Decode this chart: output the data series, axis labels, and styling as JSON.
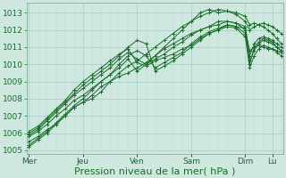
{
  "bg_color": "#cee8e0",
  "plot_bg_color": "#cee8e0",
  "grid_major_color": "#a8ccc5",
  "grid_minor_color": "#b8d8d0",
  "line_color": "#1a6b2a",
  "xlabel": "Pression niveau de la mer( hPa )",
  "xlabel_fontsize": 8,
  "tick_fontsize": 6.5,
  "ylim": [
    1004.8,
    1013.6
  ],
  "yticks": [
    1005,
    1006,
    1007,
    1008,
    1009,
    1010,
    1011,
    1012,
    1013
  ],
  "xtick_labels": [
    "Mer",
    "Jeu",
    "Ven",
    "Sam",
    "Dim",
    "Lu"
  ],
  "xtick_positions": [
    0,
    24,
    48,
    72,
    96,
    108
  ],
  "xlim": [
    -1,
    113
  ],
  "series": [
    [
      0,
      1005.5,
      4,
      1005.8,
      8,
      1006.2,
      12,
      1006.5,
      16,
      1007.0,
      20,
      1007.5,
      24,
      1007.8,
      28,
      1008.0,
      32,
      1008.4,
      36,
      1009.0,
      40,
      1009.3,
      44,
      1009.5,
      48,
      1009.8,
      52,
      1010.1,
      56,
      1010.5,
      60,
      1010.9,
      64,
      1011.2,
      68,
      1011.5,
      72,
      1011.8,
      76,
      1012.0,
      80,
      1012.2,
      84,
      1012.3,
      88,
      1012.5,
      92,
      1012.4,
      96,
      1012.0,
      98,
      1010.8,
      100,
      1011.0,
      102,
      1011.1,
      104,
      1011.0,
      106,
      1010.9,
      108,
      1010.9,
      110,
      1010.8,
      112,
      1010.7
    ],
    [
      0,
      1005.8,
      4,
      1006.1,
      8,
      1006.5,
      12,
      1007.0,
      16,
      1007.4,
      20,
      1007.9,
      24,
      1008.2,
      28,
      1008.6,
      32,
      1009.0,
      36,
      1009.4,
      40,
      1010.0,
      44,
      1010.5,
      48,
      1010.8,
      52,
      1010.5,
      56,
      1009.8,
      60,
      1010.1,
      64,
      1010.4,
      68,
      1010.7,
      72,
      1011.2,
      76,
      1011.6,
      80,
      1011.9,
      84,
      1012.1,
      88,
      1012.3,
      92,
      1012.2,
      96,
      1011.8,
      98,
      1010.2,
      100,
      1010.8,
      102,
      1011.2,
      104,
      1011.4,
      106,
      1011.3,
      108,
      1011.2,
      110,
      1011.0,
      112,
      1010.8
    ],
    [
      0,
      1006.0,
      4,
      1006.3,
      8,
      1006.8,
      12,
      1007.3,
      16,
      1007.8,
      20,
      1008.3,
      24,
      1008.8,
      28,
      1009.2,
      32,
      1009.6,
      36,
      1010.0,
      40,
      1010.5,
      44,
      1011.0,
      48,
      1011.4,
      52,
      1011.2,
      56,
      1009.6,
      60,
      1009.9,
      64,
      1010.2,
      68,
      1010.6,
      72,
      1011.0,
      76,
      1011.4,
      80,
      1011.8,
      84,
      1012.0,
      88,
      1012.2,
      92,
      1012.1,
      96,
      1011.6,
      98,
      1009.8,
      100,
      1010.5,
      102,
      1010.9,
      104,
      1011.1,
      106,
      1011.0,
      108,
      1010.9,
      110,
      1010.7,
      112,
      1010.5
    ],
    [
      0,
      1005.3,
      4,
      1005.7,
      8,
      1006.1,
      12,
      1006.6,
      16,
      1007.1,
      20,
      1007.6,
      24,
      1008.0,
      28,
      1008.5,
      32,
      1009.0,
      36,
      1009.4,
      40,
      1009.8,
      44,
      1010.3,
      48,
      1009.6,
      52,
      1010.0,
      56,
      1010.5,
      60,
      1011.0,
      64,
      1011.5,
      68,
      1012.0,
      72,
      1012.5,
      76,
      1013.0,
      80,
      1013.2,
      84,
      1013.0,
      88,
      1013.1,
      92,
      1012.9,
      96,
      1012.5,
      98,
      1012.0,
      100,
      1012.2,
      102,
      1012.3,
      104,
      1012.4,
      106,
      1012.3,
      108,
      1012.2,
      110,
      1012.0,
      112,
      1011.8
    ],
    [
      0,
      1005.2,
      4,
      1005.6,
      8,
      1006.0,
      12,
      1006.5,
      16,
      1007.0,
      20,
      1007.5,
      24,
      1007.8,
      28,
      1008.2,
      32,
      1008.7,
      36,
      1009.0,
      40,
      1009.5,
      44,
      1009.9,
      48,
      1010.2,
      52,
      1010.6,
      56,
      1011.0,
      60,
      1011.4,
      64,
      1011.8,
      68,
      1012.2,
      72,
      1012.5,
      76,
      1012.8,
      80,
      1013.0,
      84,
      1013.2,
      88,
      1013.1,
      92,
      1013.0,
      96,
      1012.8,
      98,
      1012.3,
      100,
      1012.4,
      102,
      1012.3,
      104,
      1012.2,
      106,
      1012.0,
      108,
      1011.8,
      110,
      1011.5,
      112,
      1011.2
    ],
    [
      0,
      1006.1,
      4,
      1006.4,
      8,
      1006.9,
      12,
      1007.4,
      16,
      1007.9,
      20,
      1008.5,
      24,
      1009.0,
      28,
      1009.4,
      32,
      1009.8,
      36,
      1010.2,
      40,
      1010.6,
      44,
      1010.9,
      48,
      1010.1,
      52,
      1009.9,
      56,
      1010.2,
      60,
      1010.4,
      64,
      1010.6,
      68,
      1010.9,
      72,
      1011.1,
      76,
      1011.5,
      80,
      1011.8,
      84,
      1012.0,
      88,
      1012.3,
      92,
      1012.2,
      96,
      1012.1,
      98,
      1010.5,
      100,
      1011.2,
      102,
      1011.5,
      104,
      1011.6,
      106,
      1011.5,
      108,
      1011.4,
      110,
      1011.2,
      112,
      1011.0
    ],
    [
      0,
      1005.9,
      4,
      1006.2,
      8,
      1006.7,
      12,
      1007.2,
      16,
      1007.7,
      20,
      1008.2,
      24,
      1008.6,
      28,
      1009.0,
      32,
      1009.4,
      36,
      1009.8,
      40,
      1010.3,
      44,
      1010.7,
      48,
      1010.3,
      52,
      1010.0,
      56,
      1010.3,
      60,
      1010.6,
      64,
      1011.0,
      68,
      1011.3,
      72,
      1011.7,
      76,
      1012.0,
      80,
      1012.2,
      84,
      1012.5,
      88,
      1012.5,
      92,
      1012.4,
      96,
      1012.2,
      98,
      1010.0,
      100,
      1011.0,
      102,
      1011.3,
      104,
      1011.5,
      106,
      1011.4,
      108,
      1011.3,
      110,
      1011.0,
      112,
      1010.8
    ]
  ]
}
